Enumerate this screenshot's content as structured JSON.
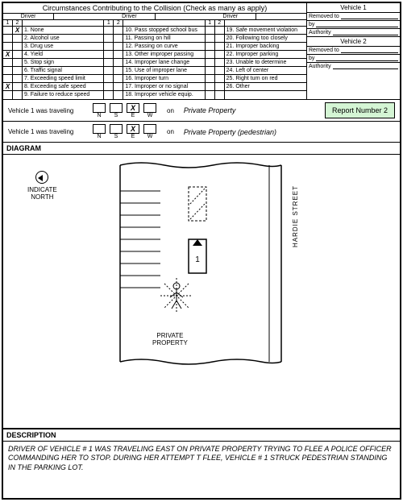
{
  "title": "Circumstances Contributing to the Collision (Check as many as apply)",
  "driver_label": "Driver",
  "driver_sub": [
    "1",
    "2"
  ],
  "col1": [
    {
      "d1": "",
      "d2": "X",
      "t": "1. None"
    },
    {
      "d1": "",
      "d2": "",
      "t": "2. Alcohol use"
    },
    {
      "d1": "",
      "d2": "",
      "t": "3. Drug use"
    },
    {
      "d1": "X",
      "d2": "",
      "t": "4. Yield"
    },
    {
      "d1": "",
      "d2": "",
      "t": "5. Stop sign"
    },
    {
      "d1": "",
      "d2": "",
      "t": "6. Traffic signal"
    },
    {
      "d1": "",
      "d2": "",
      "t": "7. Exceeding speed limit"
    },
    {
      "d1": "X",
      "d2": "",
      "t": "8. Exceeding safe speed"
    },
    {
      "d1": "",
      "d2": "",
      "t": "9. Failure to reduce speed"
    }
  ],
  "col2": [
    {
      "d1": "",
      "d2": "",
      "t": "10. Pass stopped school bus"
    },
    {
      "d1": "",
      "d2": "",
      "t": "11. Passing on hill"
    },
    {
      "d1": "",
      "d2": "",
      "t": "12. Passing on curve"
    },
    {
      "d1": "",
      "d2": "",
      "t": "13. Other improper passing"
    },
    {
      "d1": "",
      "d2": "",
      "t": "14. Improper lane change"
    },
    {
      "d1": "",
      "d2": "",
      "t": "15. Use of improper lane"
    },
    {
      "d1": "",
      "d2": "",
      "t": "16. Improper turn"
    },
    {
      "d1": "",
      "d2": "",
      "t": "17. Improper or no signal"
    },
    {
      "d1": "",
      "d2": "",
      "t": "18. Improper vehicle equip."
    }
  ],
  "col3": [
    {
      "d1": "",
      "d2": "",
      "t": "19. Safe movement violation"
    },
    {
      "d1": "",
      "d2": "",
      "t": "20. Following too closely"
    },
    {
      "d1": "",
      "d2": "",
      "t": "21. Improper backing"
    },
    {
      "d1": "",
      "d2": "",
      "t": "22. Improper parking"
    },
    {
      "d1": "",
      "d2": "",
      "t": "23. Unable to determine"
    },
    {
      "d1": "",
      "d2": "",
      "t": "24. Left of center"
    },
    {
      "d1": "",
      "d2": "",
      "t": "25. Right turn on red"
    },
    {
      "d1": "",
      "d2": "",
      "t": "26. Other"
    },
    {
      "d1": "",
      "d2": "",
      "t": ""
    }
  ],
  "side": {
    "v1_head": "Vehicle 1",
    "removed": "Removed to",
    "by": "by",
    "auth": "Authority",
    "v2_head": "Vehicle 2"
  },
  "travel1": {
    "label": "Vehicle 1 was traveling",
    "dirs": [
      "N",
      "S",
      "E",
      "W"
    ],
    "checked_index": 2,
    "on": "on",
    "road": "Private Property"
  },
  "travel2": {
    "label": "Vehicle 1 was traveling",
    "dirs": [
      "N",
      "S",
      "E",
      "W"
    ],
    "checked_index": 2,
    "on": "on",
    "road": "Private Property (pedestrian)"
  },
  "report_number": "Report Number 2",
  "diagram_label": "DIAGRAM",
  "north_label": "INDICATE\nNORTH",
  "street_name": "HARDIE STREET",
  "private_property": "PRIVATE\nPROPERTY",
  "veh_label": "1",
  "desc_label": "DESCRIPTION",
  "description": "DRIVER OF VEHICLE # 1 WAS TRAVELING EAST ON PRIVATE PROPERTY TRYING TO FLEE A POLICE OFFICER COMMANDING HER TO STOP.  DURING HER ATTEMPT T FLEE, VEHICLE # 1 STRUCK PEDESTRIAN STANDING IN THE PARKING LOT.",
  "colors": {
    "report_bg": "#d4f5d4",
    "line": "#000000"
  }
}
